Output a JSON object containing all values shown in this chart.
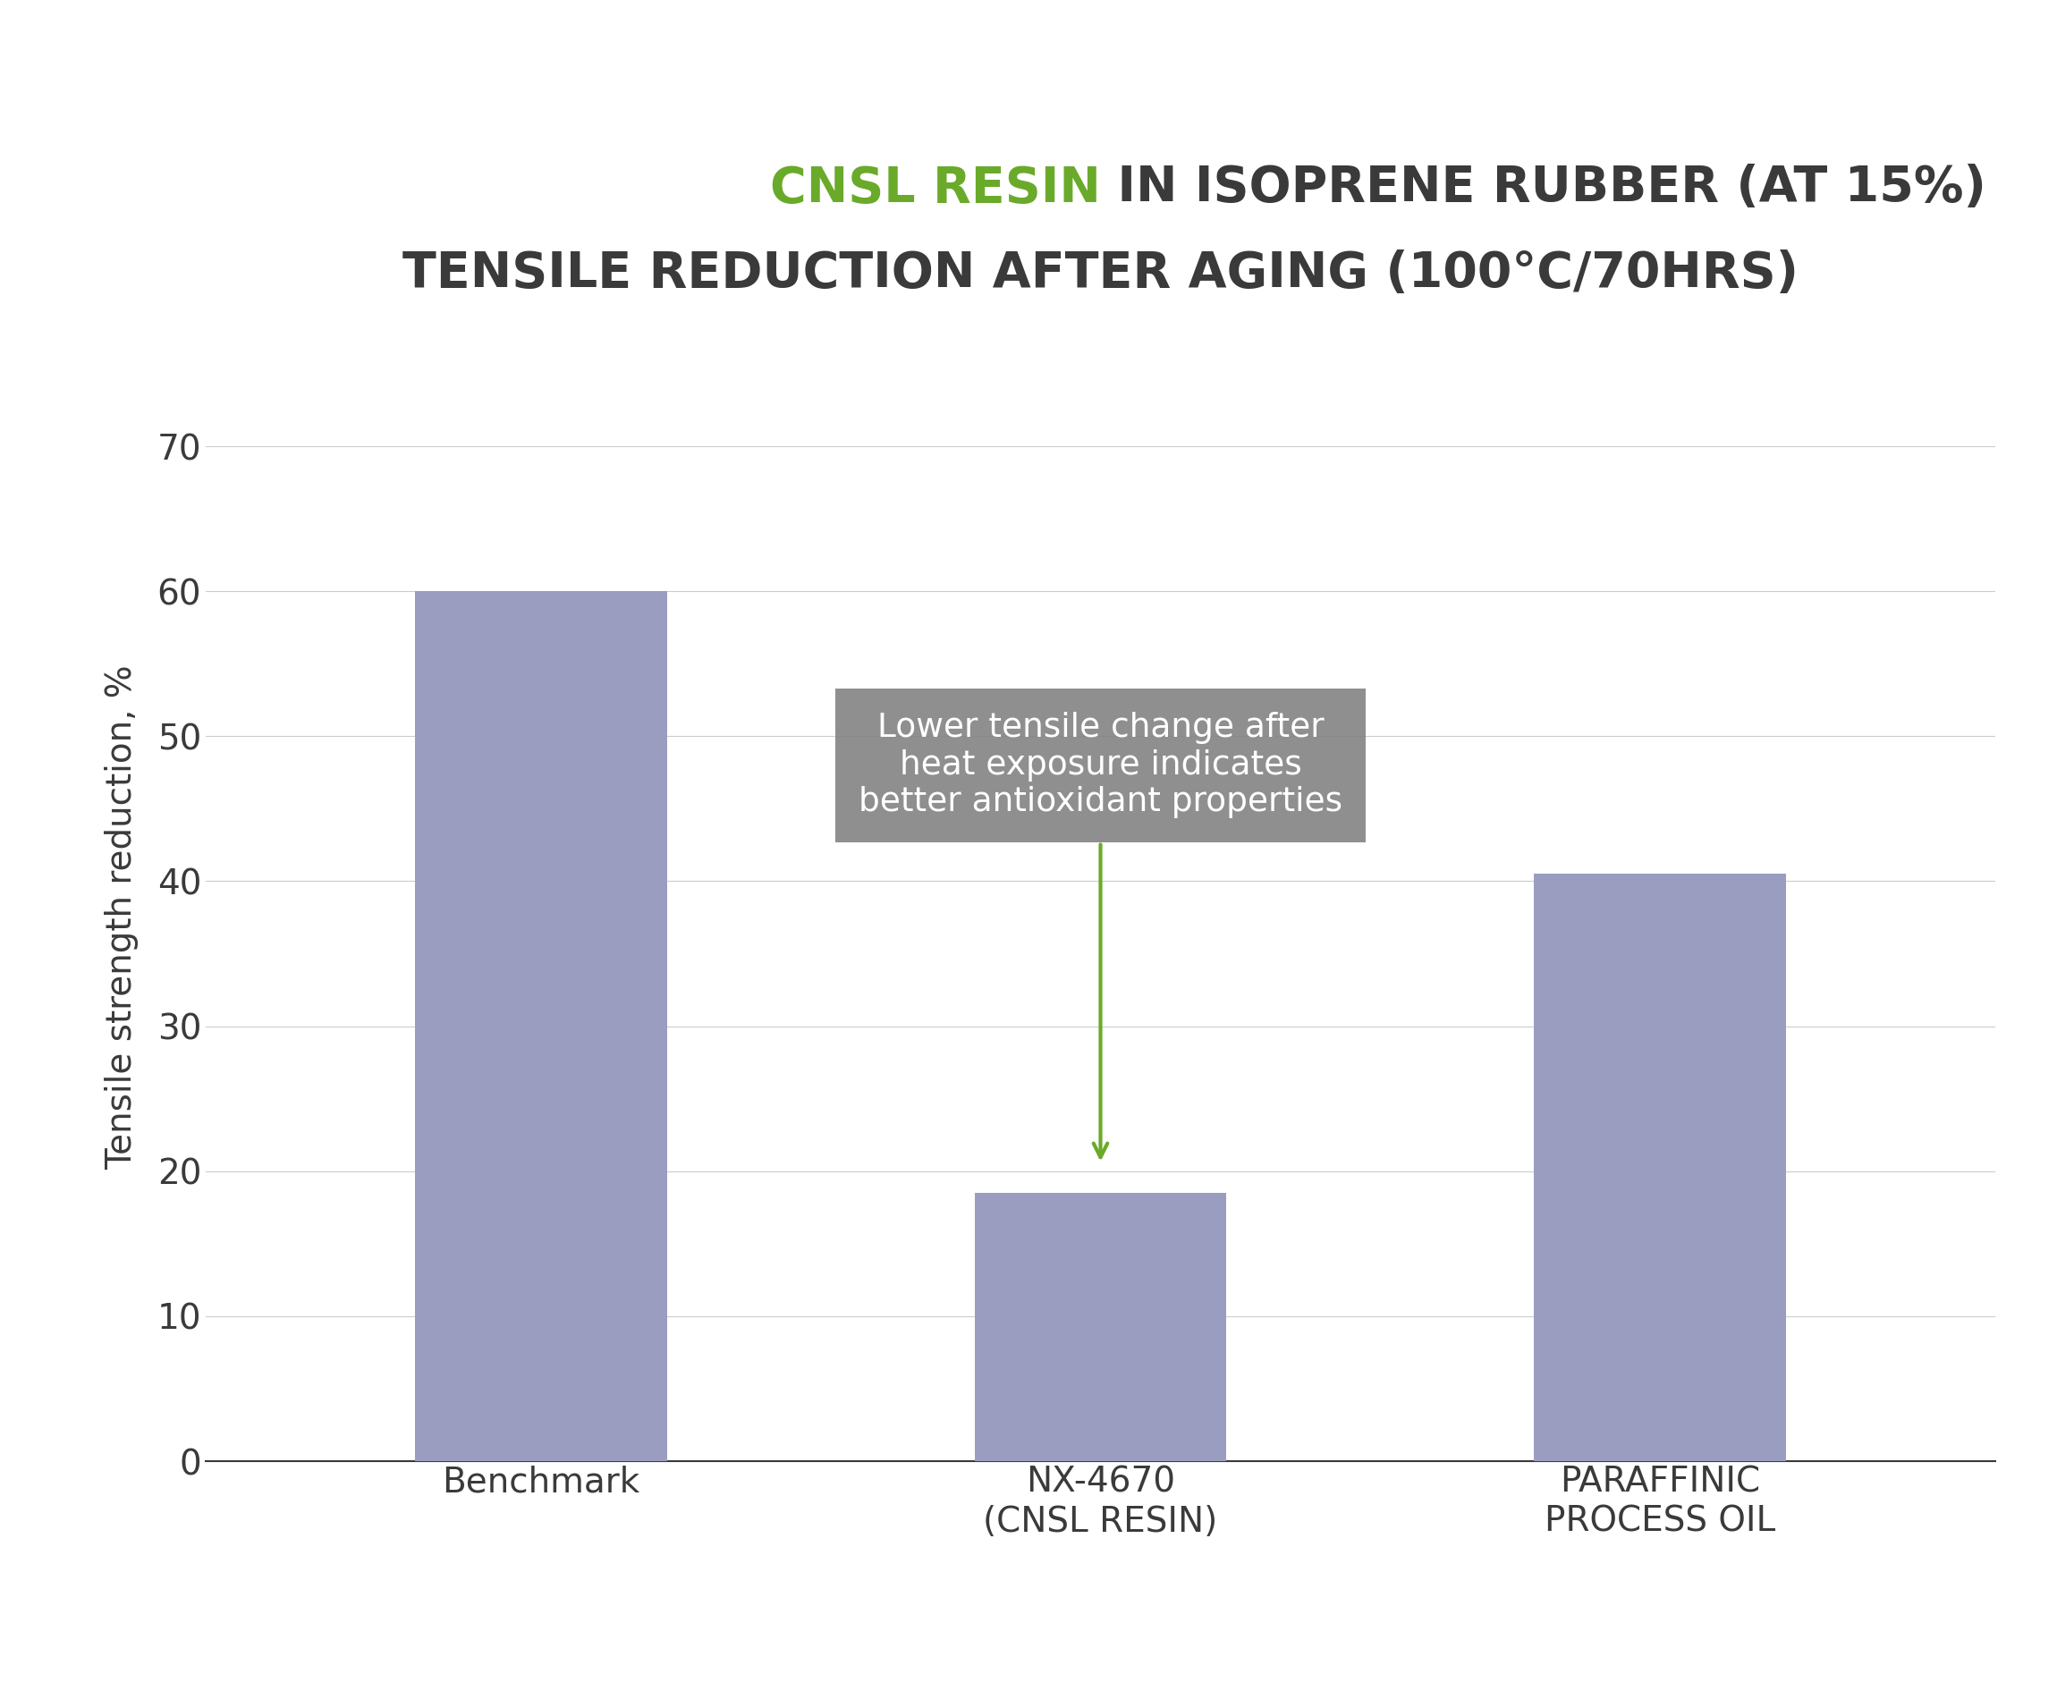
{
  "title_part1_green": "CNSL RESIN",
  "title_part1_dark": " IN ISOPRENE RUBBER (AT 15%)",
  "title_line2": "TENSILE REDUCTION AFTER AGING (100°C/70HRS)",
  "title_color_green": "#6aaa2a",
  "title_color_dark": "#3a3a3a",
  "categories": [
    "Benchmark",
    "NX-4670\n(CNSL RESIN)",
    "PARAFFINIC\nPROCESS OIL"
  ],
  "values": [
    60,
    18.5,
    40.5
  ],
  "bar_color": "#9b9dc0",
  "ylabel": "Tensile strength reduction, %",
  "ylim": [
    0,
    75
  ],
  "yticks": [
    0,
    10,
    20,
    30,
    40,
    50,
    60,
    70
  ],
  "annotation_box_color": "#808080",
  "annotation_text_color": "#ffffff",
  "arrow_color": "#6aaa2a",
  "background_color": "#ffffff",
  "bar_width": 0.45,
  "title_fontsize": 40,
  "tick_fontsize": 28,
  "ylabel_fontsize": 28,
  "xtick_fontsize": 28,
  "annotation_fontsize": 27
}
